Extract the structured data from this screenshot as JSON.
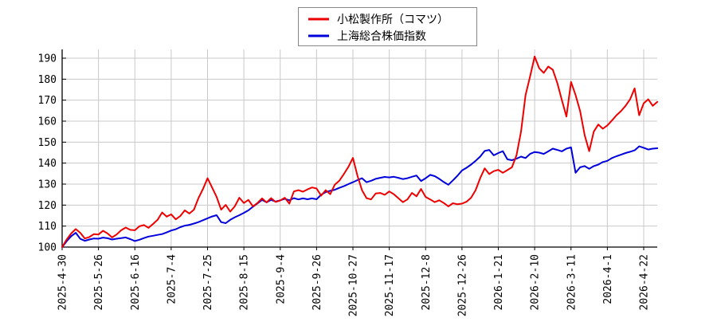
{
  "chart_data": {
    "type": "line",
    "title": "",
    "xlabel": "",
    "ylabel": "",
    "ylim": [
      100,
      190
    ],
    "yticks": [
      100,
      110,
      120,
      130,
      140,
      150,
      160,
      170,
      180,
      190
    ],
    "grid": true,
    "grid_color": "#c9c9c9",
    "axis_color": "#000000",
    "legend_position": "top-center",
    "legend_border_color": "#888888",
    "x_tick_labels": [
      "2025-4-30",
      "2025-5-26",
      "2025-6-16",
      "2025-7-4",
      "2025-7-25",
      "2025-8-15",
      "2025-9-4",
      "2025-9-26",
      "2025-10-27",
      "2025-11-17",
      "2025-12-8",
      "2025-12-26",
      "2026-1-21",
      "2026-2-10",
      "2026-3-11",
      "2026-4-1",
      "2026-4-22"
    ],
    "points_per_tick": 8,
    "series": [
      {
        "name": "小松製作所（コマツ）",
        "color": "#ee0000",
        "values": [
          100,
          103.6,
          106.5,
          108.6,
          106.8,
          104.1,
          104.8,
          106.2,
          106,
          107.8,
          106.5,
          104.6,
          106,
          108,
          109.3,
          108.2,
          108,
          109.9,
          110.5,
          109.2,
          111,
          113,
          116.5,
          114.5,
          115.6,
          113.2,
          114.8,
          117.5,
          116,
          117.8,
          123.3,
          127.7,
          132.8,
          128.4,
          123.9,
          117.8,
          120.1,
          116.9,
          119.4,
          123.5,
          121,
          122.5,
          119.4,
          121,
          123.2,
          121.3,
          123.3,
          121.5,
          122.2,
          123.5,
          120.7,
          126.5,
          127.1,
          126.4,
          127.5,
          128.4,
          127.9,
          124.5,
          127.1,
          125.2,
          129.7,
          131.6,
          134.8,
          138.2,
          142.5,
          134,
          127.1,
          123.3,
          122.7,
          125.5,
          125.8,
          124.9,
          126.5,
          125.2,
          123.3,
          121.4,
          122.7,
          125.8,
          124.2,
          127.7,
          123.9,
          122.7,
          121.4,
          122.3,
          121,
          119.4,
          120.9,
          120.4,
          120.7,
          121.6,
          123.5,
          127.1,
          132.8,
          137.5,
          134.8,
          136.2,
          136.8,
          135.4,
          136.7,
          138,
          143.7,
          155,
          172.4,
          181.3,
          190.8,
          185.2,
          183,
          186,
          184.5,
          178.1,
          170,
          162.2,
          178.7,
          172.4,
          164.8,
          153.3,
          145.7,
          155,
          158.4,
          156.4,
          158,
          160.3,
          162.8,
          164.8,
          167.3,
          170.4,
          175.6,
          162.8,
          168.5,
          170.4,
          167.3,
          169.2
        ]
      },
      {
        "name": "上海総合株価指数",
        "color": "#0000dd",
        "values": [
          100,
          102.8,
          105.2,
          106.8,
          103.9,
          103,
          103.6,
          104.1,
          104,
          104.5,
          104.2,
          103.6,
          104,
          104.3,
          104.6,
          103.8,
          102.9,
          103.5,
          104.3,
          105,
          105.4,
          105.8,
          106.2,
          107,
          107.9,
          108.5,
          109.5,
          110.2,
          110.6,
          111.2,
          111.9,
          112.8,
          113.7,
          114.6,
          115.2,
          111.9,
          111.4,
          113,
          114.2,
          115.2,
          116.3,
          117.5,
          119.2,
          120.8,
          122.5,
          121.3,
          122.5,
          121.7,
          122.3,
          123,
          122.3,
          123.3,
          122.7,
          123.2,
          122.8,
          123.2,
          122.8,
          124.9,
          126.2,
          126.8,
          127.3,
          128.2,
          129,
          130,
          130.9,
          131.9,
          132.8,
          130.9,
          131.6,
          132.5,
          133,
          133.4,
          133.2,
          133.5,
          133,
          132.4,
          132.8,
          133.5,
          134.1,
          131.5,
          132.8,
          134.4,
          133.8,
          132.5,
          131,
          129.7,
          131.8,
          134,
          136.5,
          137.8,
          139.3,
          141.1,
          143.1,
          145.8,
          146.3,
          143.7,
          144.8,
          145.7,
          141.8,
          141.4,
          142.1,
          143.1,
          142.4,
          144.4,
          145.3,
          145,
          144.4,
          145.6,
          146.9,
          146.3,
          145.6,
          146.9,
          147.5,
          135.4,
          138,
          138.6,
          137.3,
          138.6,
          139.3,
          140.5,
          141.1,
          142.4,
          143.3,
          144,
          144.8,
          145.4,
          146.1,
          148,
          147.3,
          146.5,
          146.9,
          147.1
        ]
      }
    ]
  }
}
